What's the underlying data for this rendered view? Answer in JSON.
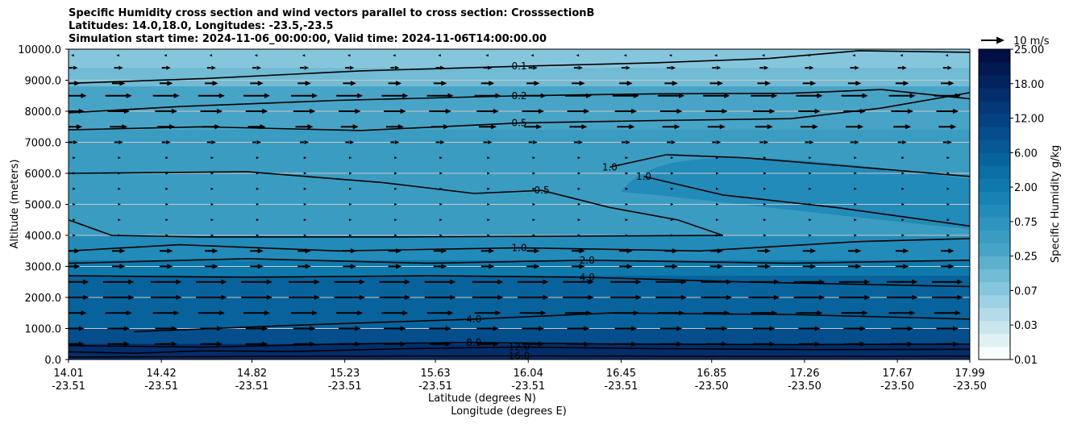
{
  "chart_data": {
    "type": "contourf",
    "title_lines": [
      "Specific Humidity cross section and wind vectors parallel to cross section: CrosssectionB",
      "Latitudes: 14.0,18.0, Longitudes: -23.5,-23.5",
      "Simulation start time: 2024-11-06_00:00:00, Valid time: 2024-11-06T14:00:00.00"
    ],
    "ylabel": "Altitude (meters)",
    "xlabel_lat": "Latitude (degrees N)",
    "xlabel_lon": "Longitude (degrees E)",
    "ylim": [
      0,
      10000
    ],
    "yticks": [
      "0.0",
      "1000.0",
      "2000.0",
      "3000.0",
      "4000.0",
      "5000.0",
      "6000.0",
      "7000.0",
      "8000.0",
      "9000.0",
      "10000.0"
    ],
    "xticks_lat": [
      "14.01",
      "14.42",
      "14.82",
      "15.23",
      "15.63",
      "16.04",
      "16.45",
      "16.85",
      "17.26",
      "17.67",
      "17.99"
    ],
    "xticks_lon": [
      "-23.51",
      "-23.51",
      "-23.51",
      "-23.51",
      "-23.51",
      "-23.51",
      "-23.51",
      "-23.50",
      "-23.50",
      "-23.50",
      "-23.50"
    ],
    "colorbar": {
      "label": "Specific Humidity g/kg",
      "tick_labels": [
        "0.01",
        "0.03",
        "0.07",
        "0.25",
        "0.75",
        "2.00",
        "6.00",
        "12.00",
        "18.00",
        "25.00"
      ],
      "labeled_levels": [
        0.01,
        0.03,
        0.07,
        0.25,
        0.75,
        2.0,
        6.0,
        12.0,
        18.0,
        25.0
      ],
      "colors": [
        "#f7fcfd",
        "#e1f0f3",
        "#c9e6ee",
        "#b3dce8",
        "#9bd1e2",
        "#86c6dc",
        "#71bbd5",
        "#5cb0ce",
        "#48a4c6",
        "#3b9cc2",
        "#2f94be",
        "#238bb9",
        "#1882b2",
        "#0f79ab",
        "#0b6ea4",
        "#08639c",
        "#075894",
        "#064d8b",
        "#054281",
        "#053877",
        "#042d6b",
        "#03235f",
        "#021951",
        "#020f45"
      ]
    },
    "humidity_layers": [
      {
        "top_alt": 10000,
        "bottom_alt": 9400,
        "q": 0.07
      },
      {
        "top_alt": 9400,
        "bottom_alt": 8800,
        "q": 0.15
      },
      {
        "top_alt": 8800,
        "bottom_alt": 7400,
        "q": 0.3
      },
      {
        "top_alt": 7400,
        "bottom_alt": 4000,
        "q": 0.45
      },
      {
        "top_alt": 4000,
        "bottom_alt": 3200,
        "q": 1.0
      },
      {
        "top_alt": 3200,
        "bottom_alt": 2700,
        "q": 2.5
      },
      {
        "top_alt": 2700,
        "bottom_alt": 1000,
        "q": 5.0
      },
      {
        "top_alt": 1000,
        "bottom_alt": 500,
        "q": 9.0
      },
      {
        "top_alt": 500,
        "bottom_alt": 0,
        "q": 17.0
      }
    ],
    "moist_tongue": {
      "q": 1.0,
      "from_lat": 16.45,
      "to_lat": 17.99,
      "alt_range": [
        4200,
        6600
      ]
    },
    "wind_vector_key": {
      "label": "10 m/s",
      "speed_ms": 10
    },
    "contours": [
      {
        "label": "0.1",
        "points": [
          [
            14.01,
            8900
          ],
          [
            14.6,
            9050
          ],
          [
            15.3,
            9300
          ],
          [
            16.0,
            9450
          ],
          [
            16.6,
            9560
          ],
          [
            17.1,
            9700
          ],
          [
            17.5,
            9950
          ],
          [
            17.99,
            9900
          ]
        ]
      },
      {
        "label": "0.2",
        "points": [
          [
            14.01,
            7950
          ],
          [
            14.5,
            8150
          ],
          [
            15.2,
            8350
          ],
          [
            16.0,
            8500
          ],
          [
            16.6,
            8560
          ],
          [
            17.2,
            8580
          ],
          [
            17.6,
            8700
          ],
          [
            17.99,
            8400
          ]
        ]
      },
      {
        "label": "0.5",
        "points": [
          [
            14.01,
            7400
          ],
          [
            14.6,
            7500
          ],
          [
            15.3,
            7380
          ],
          [
            16.0,
            7620
          ],
          [
            16.6,
            7700
          ],
          [
            17.2,
            7760
          ],
          [
            17.6,
            8100
          ],
          [
            17.99,
            8600
          ]
        ]
      },
      {
        "label": "0.5",
        "points": [
          [
            14.01,
            6000
          ],
          [
            14.8,
            6050
          ],
          [
            15.4,
            5700
          ],
          [
            15.8,
            5350
          ],
          [
            16.1,
            5450
          ],
          [
            16.4,
            4900
          ],
          [
            16.7,
            4500
          ],
          [
            16.9,
            4000
          ],
          [
            15.5,
            3950
          ],
          [
            14.6,
            3950
          ],
          [
            14.2,
            4000
          ],
          [
            14.01,
            4500
          ]
        ]
      },
      {
        "label": "1.0",
        "points": [
          [
            16.4,
            6200
          ],
          [
            16.65,
            6600
          ],
          [
            17.0,
            6500
          ],
          [
            17.5,
            6200
          ],
          [
            17.99,
            5900
          ]
        ]
      },
      {
        "label": "1.0",
        "points": [
          [
            16.55,
            5900
          ],
          [
            16.9,
            5300
          ],
          [
            17.4,
            4900
          ],
          [
            17.99,
            4300
          ]
        ]
      },
      {
        "label": "1.0",
        "points": [
          [
            14.01,
            3500
          ],
          [
            14.5,
            3700
          ],
          [
            15.2,
            3500
          ],
          [
            16.0,
            3600
          ],
          [
            16.8,
            3500
          ],
          [
            17.5,
            3800
          ],
          [
            17.99,
            3900
          ]
        ]
      },
      {
        "label": "2.0",
        "points": [
          [
            14.01,
            3100
          ],
          [
            14.8,
            3250
          ],
          [
            15.6,
            3100
          ],
          [
            16.3,
            3200
          ],
          [
            17.2,
            3100
          ],
          [
            17.99,
            3200
          ]
        ]
      },
      {
        "label": "4.0",
        "points": [
          [
            14.01,
            2700
          ],
          [
            14.8,
            2650
          ],
          [
            15.6,
            2700
          ],
          [
            16.3,
            2650
          ],
          [
            17.0,
            2500
          ],
          [
            17.99,
            2350
          ]
        ]
      },
      {
        "label": "4.0",
        "points": [
          [
            14.3,
            900
          ],
          [
            15.0,
            1100
          ],
          [
            15.8,
            1300
          ],
          [
            16.4,
            1500
          ],
          [
            17.2,
            1450
          ],
          [
            17.99,
            1300
          ]
        ]
      },
      {
        "label": "8.0",
        "points": [
          [
            14.01,
            450
          ],
          [
            14.6,
            400
          ],
          [
            15.2,
            500
          ],
          [
            15.8,
            550
          ],
          [
            16.4,
            500
          ],
          [
            17.2,
            480
          ],
          [
            17.99,
            500
          ]
        ]
      },
      {
        "label": "12.0",
        "points": [
          [
            14.01,
            250
          ],
          [
            14.3,
            200
          ],
          [
            14.6,
            280
          ],
          [
            15.0,
            260
          ],
          [
            15.5,
            350
          ],
          [
            16.0,
            400
          ],
          [
            16.6,
            350
          ],
          [
            17.3,
            320
          ],
          [
            17.99,
            330
          ]
        ]
      },
      {
        "label": "16.0",
        "points": [
          [
            14.01,
            80
          ],
          [
            15.0,
            100
          ],
          [
            16.0,
            120
          ],
          [
            17.0,
            100
          ],
          [
            17.99,
            110
          ]
        ]
      }
    ],
    "wind_rows": [
      {
        "alt": 9800,
        "u": -1
      },
      {
        "alt": 9400,
        "u": 2
      },
      {
        "alt": 8900,
        "u": 3
      },
      {
        "alt": 8500,
        "u": 6
      },
      {
        "alt": 8000,
        "u": 5
      },
      {
        "alt": 7500,
        "u": 4
      },
      {
        "alt": 7000,
        "u": 2
      },
      {
        "alt": 6500,
        "u": 1
      },
      {
        "alt": 6000,
        "u": 1
      },
      {
        "alt": 5500,
        "u": 1
      },
      {
        "alt": 5000,
        "u": 1
      },
      {
        "alt": 4500,
        "u": 1
      },
      {
        "alt": 4000,
        "u": 1
      },
      {
        "alt": 3500,
        "u": 3
      },
      {
        "alt": 3000,
        "u": 3
      },
      {
        "alt": 2500,
        "u": 7
      },
      {
        "alt": 2000,
        "u": 7
      },
      {
        "alt": 1500,
        "u": 6
      },
      {
        "alt": 1000,
        "u": 5
      },
      {
        "alt": 500,
        "u": 5
      }
    ],
    "wind_cols_lat": [
      14.01,
      14.21,
      14.42,
      14.62,
      14.82,
      15.03,
      15.23,
      15.43,
      15.63,
      15.84,
      16.04,
      16.24,
      16.45,
      16.65,
      16.85,
      17.06,
      17.26,
      17.46,
      17.67,
      17.87
    ]
  }
}
